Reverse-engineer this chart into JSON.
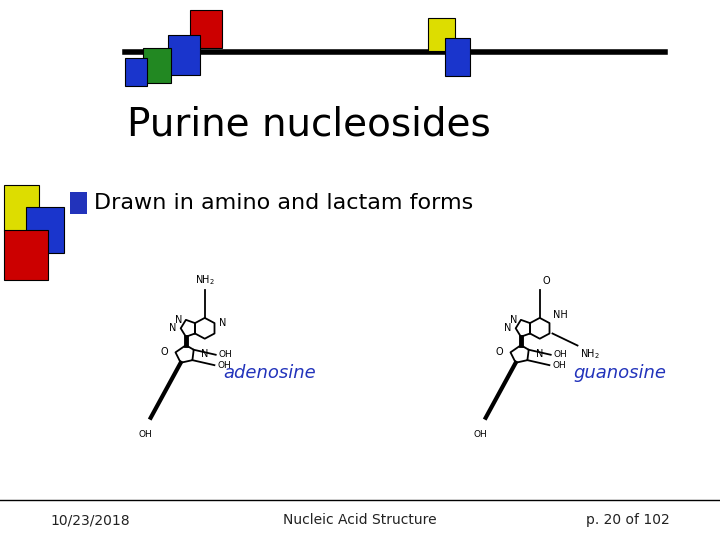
{
  "title": "Purine nucleosides",
  "bullet": "Drawn in amino and lactam forms",
  "label_adenosine": "adenosine",
  "label_guanosine": "guanosine",
  "footer_left": "10/23/2018",
  "footer_center": "Nucleic Acid Structure",
  "footer_right": "p. 20 of 102",
  "bg_color": "#ffffff",
  "title_color": "#000000",
  "bullet_color": "#000000",
  "label_color": "#2233bb",
  "footer_color": "#222222",
  "bullet_square_color": "#2233bb"
}
